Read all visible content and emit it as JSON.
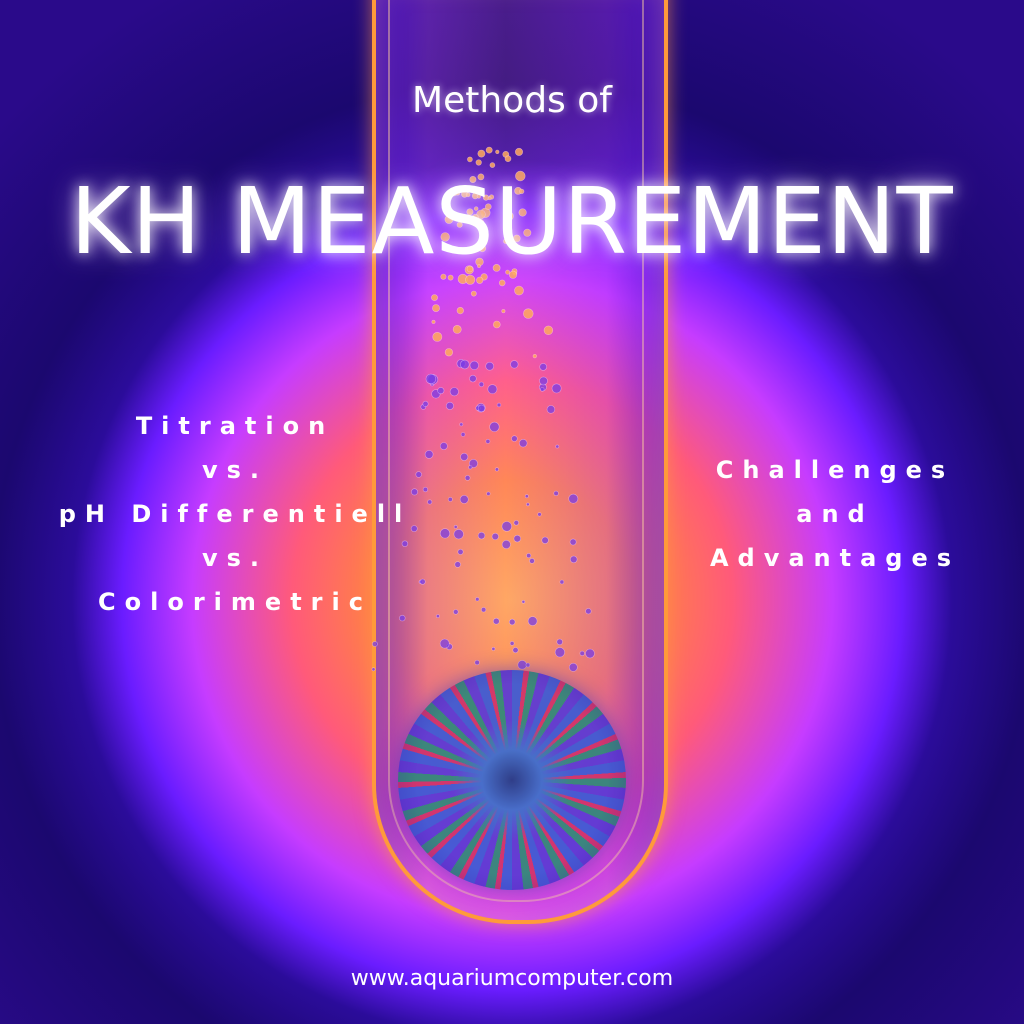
{
  "header": {
    "subtitle": "Methods of",
    "title": "KH MEASUREMENT"
  },
  "left_panel": {
    "lines": [
      "Titration",
      "vs.",
      "pH Differentiell",
      "vs.",
      "Colorimetric"
    ]
  },
  "right_panel": {
    "lines": [
      "Challenges",
      "and",
      "Advantages"
    ]
  },
  "footer": {
    "url": "www.aquariumcomputer.com"
  },
  "colors": {
    "background": "#2a0a8a",
    "glow_center": "#ffb24a",
    "tube_edge": "#ff9a3a",
    "text": "#ffffff"
  }
}
